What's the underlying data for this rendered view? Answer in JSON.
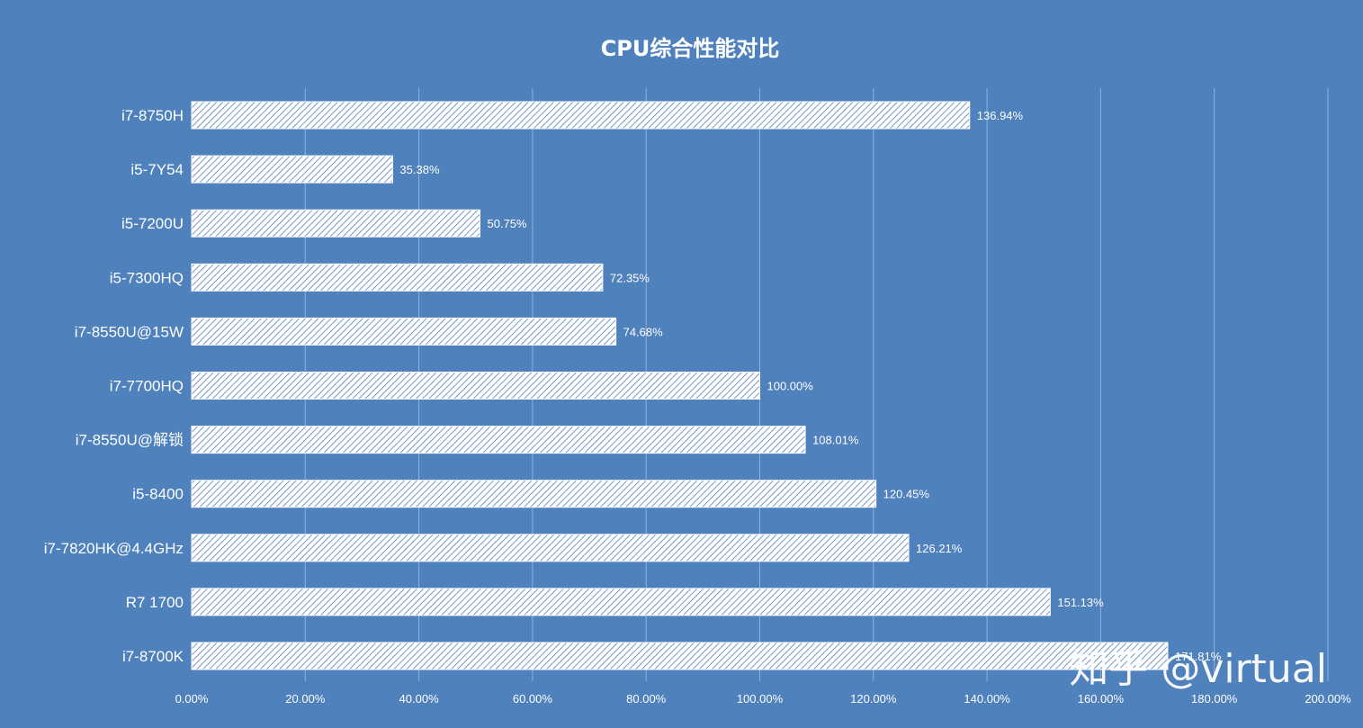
{
  "watermark": "知乎 @virtual",
  "colors": {
    "background": "#4f81bd",
    "bar_fill": "#ffffff",
    "bar_hatch": "#4f81bd",
    "text": "#ffffff",
    "grid": "#8fb0d9"
  },
  "chart_data": {
    "type": "bar",
    "orientation": "horizontal",
    "title": "CPU综合性能对比",
    "categories": [
      "i7-8750H",
      "i5-7Y54",
      "i5-7200U",
      "i5-7300HQ",
      "i7-8550U@15W",
      "i7-7700HQ",
      "i7-8550U@解锁",
      "i5-8400",
      "i7-7820HK@4.4GHz",
      "R7 1700",
      "i7-8700K"
    ],
    "values": [
      136.94,
      35.38,
      50.75,
      72.35,
      74.68,
      100.0,
      108.01,
      120.45,
      126.21,
      151.13,
      171.81
    ],
    "value_labels": [
      "136.94%",
      "35.38%",
      "50.75%",
      "72.35%",
      "74.68%",
      "100.00%",
      "108.01%",
      "120.45%",
      "126.21%",
      "151.13%",
      "171.81%"
    ],
    "xlim": [
      0,
      200
    ],
    "xticks": [
      0,
      20,
      40,
      60,
      80,
      100,
      120,
      140,
      160,
      180,
      200
    ],
    "xtick_labels": [
      "0.00%",
      "20.00%",
      "40.00%",
      "60.00%",
      "80.00%",
      "100.00%",
      "120.00%",
      "140.00%",
      "160.00%",
      "180.00%",
      "200.00%"
    ],
    "xlabel": "",
    "ylabel": "",
    "grid": true,
    "legend": "none",
    "bar_pattern": "diagonal-hatch"
  }
}
